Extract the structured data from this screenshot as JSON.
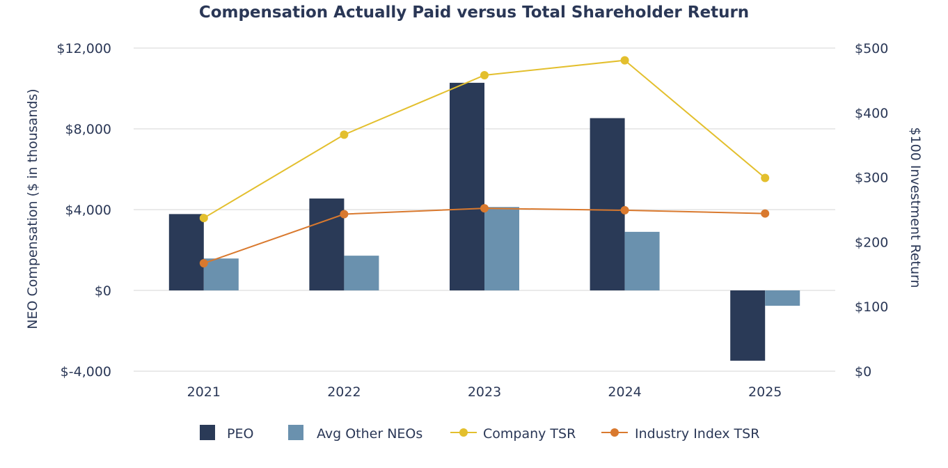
{
  "chart_data": {
    "type": "bar",
    "title": "Compensation Actually Paid versus Total Shareholder Return",
    "categories": [
      "2021",
      "2022",
      "2023",
      "2024",
      "2025"
    ],
    "ylabel": "NEO Compensation ($ in thousands)",
    "y2label": "$100 Investment Return",
    "ylim": [
      -4000,
      12000
    ],
    "y2lim": [
      0,
      500
    ],
    "yticks": [
      -4000,
      0,
      4000,
      8000,
      12000
    ],
    "ytick_labels": [
      "$-4,000",
      "$0",
      "$4,000",
      "$8,000",
      "$12,000"
    ],
    "y2ticks": [
      0,
      100,
      200,
      300,
      400,
      500
    ],
    "y2tick_labels": [
      "$0",
      "$100",
      "$200",
      "$300",
      "$400",
      "$500"
    ],
    "grid": true,
    "legend_position": "bottom",
    "series": [
      {
        "name": "PEO",
        "kind": "bar",
        "axis": "left",
        "color": "#2a3a57",
        "values": [
          3780,
          4550,
          10280,
          8530,
          -3480
        ]
      },
      {
        "name": "Avg Other NEOs",
        "kind": "bar",
        "axis": "left",
        "color": "#6a91ae",
        "values": [
          1580,
          1720,
          4130,
          2900,
          -760
        ]
      },
      {
        "name": "Company TSR",
        "kind": "line",
        "axis": "right",
        "color": "#e3bf2d",
        "values": [
          237,
          366,
          458,
          481,
          299
        ]
      },
      {
        "name": "Industry Index TSR",
        "kind": "line",
        "axis": "right",
        "color": "#d9792e",
        "values": [
          167,
          243,
          252,
          249,
          244
        ]
      }
    ]
  }
}
